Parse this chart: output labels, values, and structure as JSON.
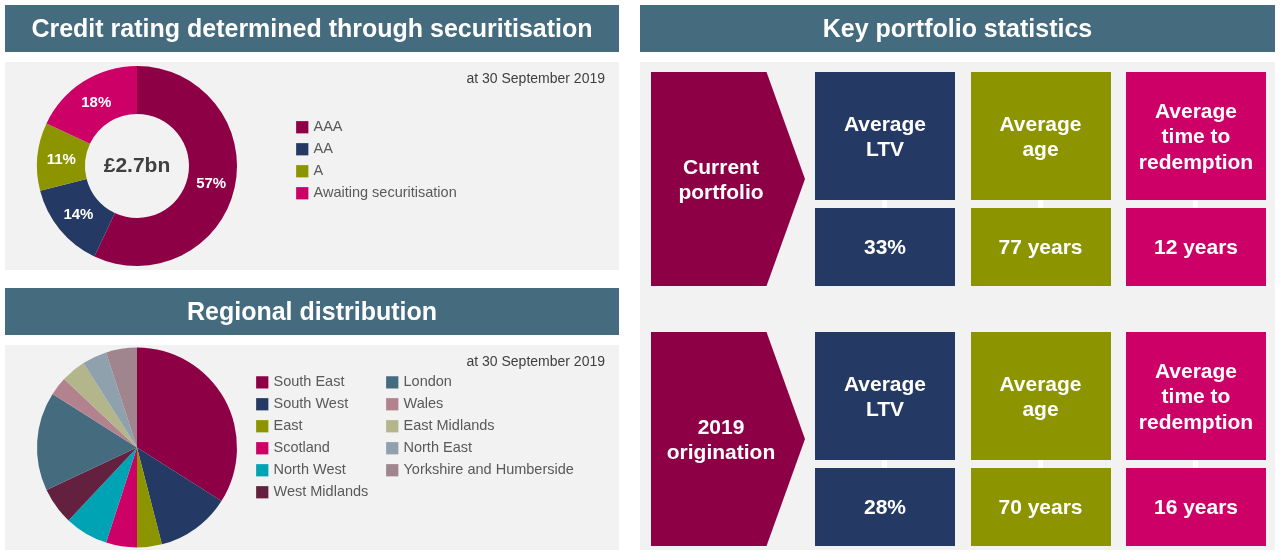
{
  "chart_data": [
    {
      "type": "donut",
      "title": "Credit rating determined through securitisation",
      "categories": [
        "AAA",
        "AA",
        "A",
        "Awaiting securitisation"
      ],
      "values": [
        57,
        14,
        11,
        18
      ],
      "colors": [
        "#8e0046",
        "#243a64",
        "#8c9400",
        "#cc0066"
      ],
      "value_labels": [
        "57%",
        "14%",
        "11%",
        "18%"
      ],
      "annotations": [
        "£2.7bn",
        "at 30 September 2019"
      ],
      "legend": "right"
    },
    {
      "type": "pie",
      "title": "Regional distribution",
      "categories": [
        "South East",
        "South West",
        "East",
        "Scotland",
        "North West",
        "West Midlands",
        "London",
        "Wales",
        "East Midlands",
        "North East",
        "Yorkshire and Humberside"
      ],
      "values": [
        34,
        12,
        4,
        5,
        7,
        6,
        16,
        3,
        4,
        4,
        5
      ],
      "colors": [
        "#8e0046",
        "#243a64",
        "#8c9400",
        "#cc0066",
        "#00a3b4",
        "#63213f",
        "#456b7e",
        "#b3828f",
        "#b2b68a",
        "#8fa1ac",
        "#a0858e"
      ],
      "annotations": [
        "at 30 September 2019"
      ],
      "legend": "right"
    },
    {
      "type": "other",
      "title": "Key portfolio statistics",
      "annotations": [
        "Current portfolio",
        "Average LTV",
        "Average age",
        "Average time to redemption",
        "33%",
        "77 years",
        "12 years",
        "2019 origination",
        "Average LTV",
        "Average age",
        "Average time to redemption",
        "28%",
        "70 years",
        "16 years"
      ]
    }
  ]
}
